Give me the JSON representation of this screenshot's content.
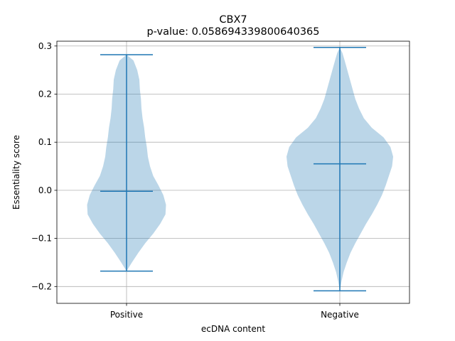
{
  "chart_data": {
    "type": "violin",
    "title": "CBX7",
    "subtitle": "p-value: 0.058694339800640365",
    "xlabel": "ecDNA content",
    "ylabel": "Essentiality score",
    "categories": [
      "Positive",
      "Negative"
    ],
    "ylim": [
      -0.235,
      0.31
    ],
    "yticks": [
      -0.2,
      -0.1,
      0.0,
      0.1,
      0.2,
      0.3
    ],
    "ytick_labels": [
      "−0.2",
      "−0.1",
      "0.0",
      "0.1",
      "0.2",
      "0.3"
    ],
    "grid": true,
    "violins": [
      {
        "category": "Positive",
        "min": -0.168,
        "median": -0.002,
        "max": 0.282,
        "profile": [
          [
            -0.168,
            0.0
          ],
          [
            -0.15,
            0.1
          ],
          [
            -0.13,
            0.22
          ],
          [
            -0.11,
            0.35
          ],
          [
            -0.09,
            0.5
          ],
          [
            -0.07,
            0.63
          ],
          [
            -0.05,
            0.73
          ],
          [
            -0.03,
            0.74
          ],
          [
            -0.01,
            0.69
          ],
          [
            0.01,
            0.6
          ],
          [
            0.03,
            0.5
          ],
          [
            0.05,
            0.44
          ],
          [
            0.07,
            0.4
          ],
          [
            0.09,
            0.38
          ],
          [
            0.11,
            0.35
          ],
          [
            0.13,
            0.33
          ],
          [
            0.15,
            0.3
          ],
          [
            0.17,
            0.28
          ],
          [
            0.19,
            0.27
          ],
          [
            0.21,
            0.25
          ],
          [
            0.23,
            0.24
          ],
          [
            0.25,
            0.2
          ],
          [
            0.27,
            0.13
          ],
          [
            0.282,
            0.0
          ]
        ]
      },
      {
        "category": "Negative",
        "min": -0.209,
        "median": 0.055,
        "max": 0.297,
        "profile": [
          [
            -0.209,
            0.0
          ],
          [
            -0.19,
            0.03
          ],
          [
            -0.17,
            0.07
          ],
          [
            -0.15,
            0.13
          ],
          [
            -0.13,
            0.2
          ],
          [
            -0.11,
            0.29
          ],
          [
            -0.09,
            0.39
          ],
          [
            -0.07,
            0.49
          ],
          [
            -0.05,
            0.6
          ],
          [
            -0.03,
            0.7
          ],
          [
            -0.01,
            0.79
          ],
          [
            0.01,
            0.86
          ],
          [
            0.03,
            0.92
          ],
          [
            0.05,
            0.98
          ],
          [
            0.07,
            1.0
          ],
          [
            0.09,
            0.95
          ],
          [
            0.11,
            0.82
          ],
          [
            0.13,
            0.6
          ],
          [
            0.15,
            0.45
          ],
          [
            0.17,
            0.36
          ],
          [
            0.19,
            0.29
          ],
          [
            0.21,
            0.24
          ],
          [
            0.23,
            0.19
          ],
          [
            0.25,
            0.14
          ],
          [
            0.27,
            0.09
          ],
          [
            0.285,
            0.05
          ],
          [
            0.297,
            0.0
          ]
        ]
      }
    ],
    "colors": {
      "violin_fill": "#1f77b4",
      "violin_fill_opacity": 0.3,
      "lines": "#1f77b4",
      "grid": "#b0b0b0"
    }
  }
}
